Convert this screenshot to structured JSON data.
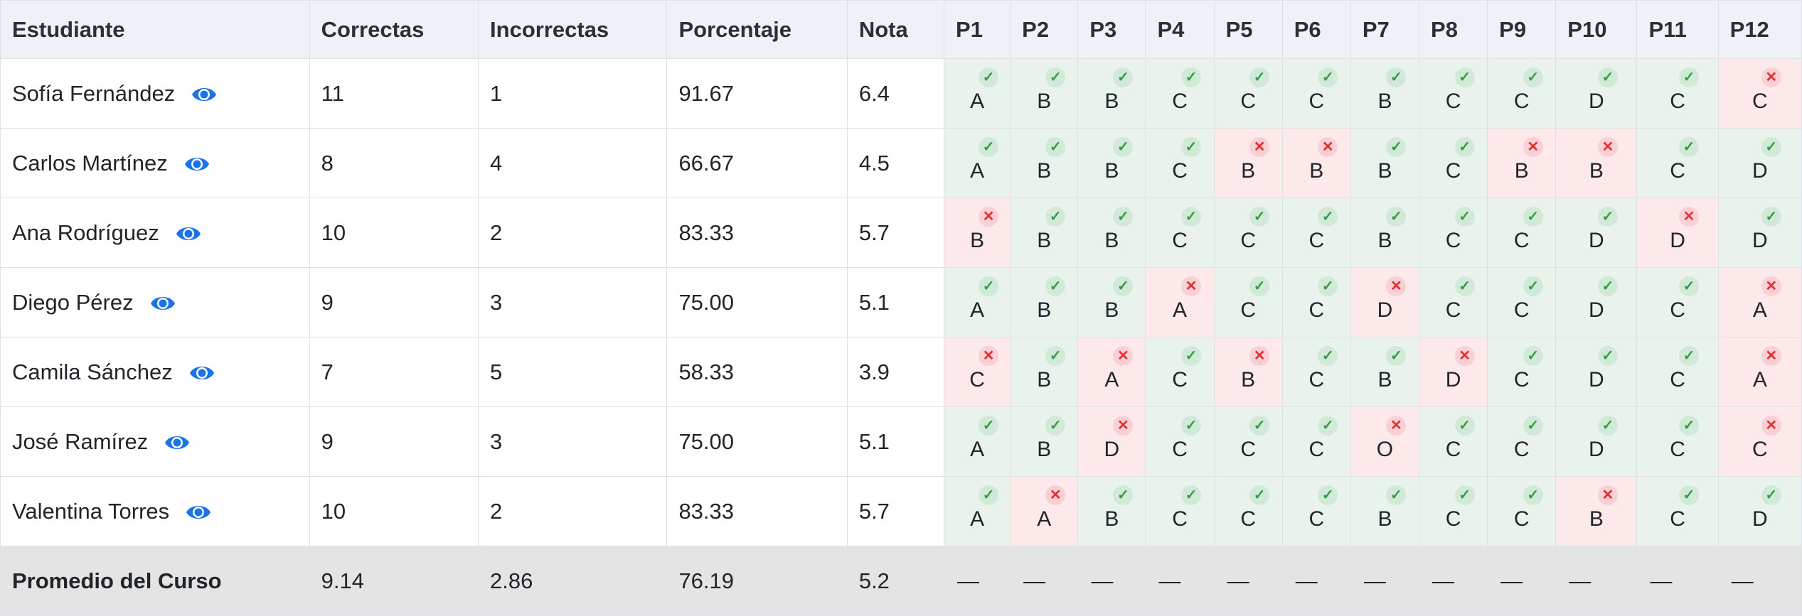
{
  "table": {
    "headers": [
      "Estudiante",
      "Correctas",
      "Incorrectas",
      "Porcentaje",
      "Nota"
    ],
    "question_headers": [
      "P1",
      "P2",
      "P3",
      "P4",
      "P5",
      "P6",
      "P7",
      "P8",
      "P9",
      "P10",
      "P11",
      "P12"
    ],
    "rows": [
      {
        "name": "Sofía Fernández",
        "correct": "11",
        "incorrect": "1",
        "percent": "91.67",
        "grade": "6.4",
        "answers": [
          {
            "l": "A",
            "ok": true
          },
          {
            "l": "B",
            "ok": true
          },
          {
            "l": "B",
            "ok": true
          },
          {
            "l": "C",
            "ok": true
          },
          {
            "l": "C",
            "ok": true
          },
          {
            "l": "C",
            "ok": true
          },
          {
            "l": "B",
            "ok": true
          },
          {
            "l": "C",
            "ok": true
          },
          {
            "l": "C",
            "ok": true
          },
          {
            "l": "D",
            "ok": true
          },
          {
            "l": "C",
            "ok": true
          },
          {
            "l": "C",
            "ok": false
          }
        ]
      },
      {
        "name": "Carlos Martínez",
        "correct": "8",
        "incorrect": "4",
        "percent": "66.67",
        "grade": "4.5",
        "answers": [
          {
            "l": "A",
            "ok": true
          },
          {
            "l": "B",
            "ok": true
          },
          {
            "l": "B",
            "ok": true
          },
          {
            "l": "C",
            "ok": true
          },
          {
            "l": "B",
            "ok": false
          },
          {
            "l": "B",
            "ok": false
          },
          {
            "l": "B",
            "ok": true
          },
          {
            "l": "C",
            "ok": true
          },
          {
            "l": "B",
            "ok": false
          },
          {
            "l": "B",
            "ok": false
          },
          {
            "l": "C",
            "ok": true
          },
          {
            "l": "D",
            "ok": true
          }
        ]
      },
      {
        "name": "Ana Rodríguez",
        "correct": "10",
        "incorrect": "2",
        "percent": "83.33",
        "grade": "5.7",
        "answers": [
          {
            "l": "B",
            "ok": false
          },
          {
            "l": "B",
            "ok": true
          },
          {
            "l": "B",
            "ok": true
          },
          {
            "l": "C",
            "ok": true
          },
          {
            "l": "C",
            "ok": true
          },
          {
            "l": "C",
            "ok": true
          },
          {
            "l": "B",
            "ok": true
          },
          {
            "l": "C",
            "ok": true
          },
          {
            "l": "C",
            "ok": true
          },
          {
            "l": "D",
            "ok": true
          },
          {
            "l": "D",
            "ok": false
          },
          {
            "l": "D",
            "ok": true
          }
        ]
      },
      {
        "name": "Diego Pérez",
        "correct": "9",
        "incorrect": "3",
        "percent": "75.00",
        "grade": "5.1",
        "answers": [
          {
            "l": "A",
            "ok": true
          },
          {
            "l": "B",
            "ok": true
          },
          {
            "l": "B",
            "ok": true
          },
          {
            "l": "A",
            "ok": false
          },
          {
            "l": "C",
            "ok": true
          },
          {
            "l": "C",
            "ok": true
          },
          {
            "l": "D",
            "ok": false
          },
          {
            "l": "C",
            "ok": true
          },
          {
            "l": "C",
            "ok": true
          },
          {
            "l": "D",
            "ok": true
          },
          {
            "l": "C",
            "ok": true
          },
          {
            "l": "A",
            "ok": false
          }
        ]
      },
      {
        "name": "Camila Sánchez",
        "correct": "7",
        "incorrect": "5",
        "percent": "58.33",
        "grade": "3.9",
        "answers": [
          {
            "l": "C",
            "ok": false
          },
          {
            "l": "B",
            "ok": true
          },
          {
            "l": "A",
            "ok": false
          },
          {
            "l": "C",
            "ok": true
          },
          {
            "l": "B",
            "ok": false
          },
          {
            "l": "C",
            "ok": true
          },
          {
            "l": "B",
            "ok": true
          },
          {
            "l": "D",
            "ok": false
          },
          {
            "l": "C",
            "ok": true
          },
          {
            "l": "D",
            "ok": true
          },
          {
            "l": "C",
            "ok": true
          },
          {
            "l": "A",
            "ok": false
          }
        ]
      },
      {
        "name": "José Ramírez",
        "correct": "9",
        "incorrect": "3",
        "percent": "75.00",
        "grade": "5.1",
        "answers": [
          {
            "l": "A",
            "ok": true
          },
          {
            "l": "B",
            "ok": true
          },
          {
            "l": "D",
            "ok": false
          },
          {
            "l": "C",
            "ok": true
          },
          {
            "l": "C",
            "ok": true
          },
          {
            "l": "C",
            "ok": true
          },
          {
            "l": "O",
            "ok": false
          },
          {
            "l": "C",
            "ok": true
          },
          {
            "l": "C",
            "ok": true
          },
          {
            "l": "D",
            "ok": true
          },
          {
            "l": "C",
            "ok": true
          },
          {
            "l": "C",
            "ok": false
          }
        ]
      },
      {
        "name": "Valentina Torres",
        "correct": "10",
        "incorrect": "2",
        "percent": "83.33",
        "grade": "5.7",
        "answers": [
          {
            "l": "A",
            "ok": true
          },
          {
            "l": "A",
            "ok": false
          },
          {
            "l": "B",
            "ok": true
          },
          {
            "l": "C",
            "ok": true
          },
          {
            "l": "C",
            "ok": true
          },
          {
            "l": "C",
            "ok": true
          },
          {
            "l": "B",
            "ok": true
          },
          {
            "l": "C",
            "ok": true
          },
          {
            "l": "C",
            "ok": true
          },
          {
            "l": "B",
            "ok": false
          },
          {
            "l": "C",
            "ok": true
          },
          {
            "l": "D",
            "ok": true
          }
        ]
      }
    ],
    "average": {
      "label": "Promedio del Curso",
      "correct": "9.14",
      "incorrect": "2.86",
      "percent": "76.19",
      "grade": "5.2",
      "dash": "—"
    },
    "marks": {
      "ok": "✓",
      "bad": "✕"
    },
    "colors": {
      "eye": "#1a73e8",
      "correct_bg": "#e9f3ec",
      "incorrect_bg": "#fde8ea",
      "check": "#2f9e44",
      "cross": "#e03131"
    },
    "icons": {
      "row_action": "eye-icon"
    }
  }
}
